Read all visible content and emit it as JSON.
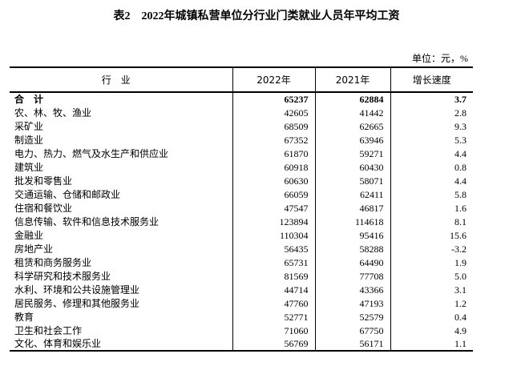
{
  "title": "表2　2022年城镇私营单位分行业门类就业人员年平均工资",
  "unit": "单位：元，%",
  "table": {
    "header": [
      "行业",
      "2022年",
      "2021年",
      "增长速度"
    ],
    "rows": [
      [
        "合　计",
        "65237",
        "62884",
        "3.7"
      ],
      [
        "农、林、牧、渔业",
        "42605",
        "41442",
        "2.8"
      ],
      [
        "采矿业",
        "68509",
        "62665",
        "9.3"
      ],
      [
        "制造业",
        "67352",
        "63946",
        "5.3"
      ],
      [
        "电力、热力、燃气及水生产和供应业",
        "61870",
        "59271",
        "4.4"
      ],
      [
        "建筑业",
        "60918",
        "60430",
        "0.8"
      ],
      [
        "批发和零售业",
        "60630",
        "58071",
        "4.4"
      ],
      [
        "交通运输、仓储和邮政业",
        "66059",
        "62411",
        "5.8"
      ],
      [
        "住宿和餐饮业",
        "47547",
        "46817",
        "1.6"
      ],
      [
        "信息传输、软件和信息技术服务业",
        "123894",
        "114618",
        "8.1"
      ],
      [
        "金融业",
        "110304",
        "95416",
        "15.6"
      ],
      [
        "房地产业",
        "56435",
        "58288",
        "-3.2"
      ],
      [
        "租赁和商务服务业",
        "65731",
        "64490",
        "1.9"
      ],
      [
        "科学研究和技术服务业",
        "81569",
        "77708",
        "5.0"
      ],
      [
        "水利、环境和公共设施管理业",
        "44714",
        "43366",
        "3.1"
      ],
      [
        "居民服务、修理和其他服务业",
        "47760",
        "47193",
        "1.2"
      ],
      [
        "教育",
        "52771",
        "52579",
        "0.4"
      ],
      [
        "卫生和社会工作",
        "71060",
        "67750",
        "4.9"
      ],
      [
        "文化、体育和娱乐业",
        "56769",
        "56171",
        "1.1"
      ]
    ]
  }
}
